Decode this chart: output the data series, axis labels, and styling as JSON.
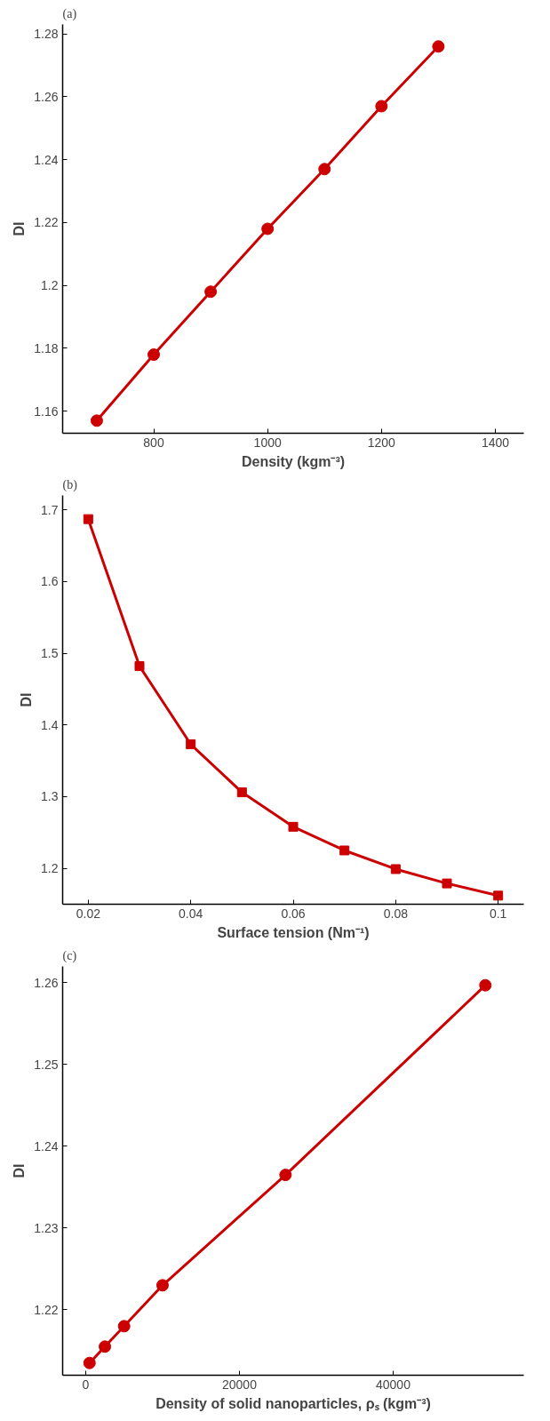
{
  "chart_data": [
    {
      "type": "line",
      "title": "(a)",
      "xlabel": "Density (kgm⁻³)",
      "ylabel": "DI",
      "marker": "circle",
      "grid": false,
      "x": [
        700,
        800,
        900,
        1000,
        1100,
        1200,
        1300
      ],
      "series": [
        {
          "color": "#cc0000",
          "values": [
            1.157,
            1.178,
            1.198,
            1.218,
            1.237,
            1.257,
            1.276
          ]
        }
      ],
      "xlim": [
        640,
        1450
      ],
      "xticks": [
        800,
        1000,
        1200,
        1400
      ],
      "ylim": [
        1.153,
        1.283
      ],
      "yticks": [
        1.16,
        1.18,
        {
          "value": 1.2,
          "label": "1.2"
        },
        1.22,
        1.24,
        1.26,
        1.28
      ]
    },
    {
      "type": "line",
      "title": "(b)",
      "xlabel": "Surface tension (Nm⁻¹)",
      "ylabel": "DI",
      "marker": "square",
      "grid": false,
      "x": [
        0.02,
        0.03,
        0.04,
        0.05,
        0.06,
        0.07,
        0.08,
        0.09,
        0.1
      ],
      "series": [
        {
          "color": "#cc0000",
          "values": [
            1.687,
            1.482,
            1.373,
            1.306,
            1.258,
            1.225,
            1.199,
            1.179,
            1.162
          ]
        }
      ],
      "xlim": [
        0.015,
        0.105
      ],
      "xticks": [
        0.02,
        0.04,
        0.06,
        0.08,
        0.1
      ],
      "ylim": [
        1.15,
        1.72
      ],
      "yticks": [
        1.2,
        1.3,
        1.4,
        1.5,
        1.6,
        1.7
      ]
    },
    {
      "type": "line",
      "title": "(c)",
      "xlabel": "Density of solid nanoparticles, ρₛ (kgm⁻³)",
      "ylabel": "DI",
      "marker": "circle",
      "grid": false,
      "x": [
        500,
        2500,
        5000,
        10000,
        26000,
        52000
      ],
      "series": [
        {
          "color": "#cc0000",
          "values": [
            1.2135,
            1.2155,
            1.218,
            1.223,
            1.2365,
            1.2597
          ]
        }
      ],
      "xlim": [
        -3000,
        57000
      ],
      "xticks": [
        0,
        20000,
        40000
      ],
      "ylim": [
        1.212,
        1.262
      ],
      "yticks": [
        1.22,
        1.23,
        1.24,
        1.25,
        1.26
      ]
    }
  ]
}
